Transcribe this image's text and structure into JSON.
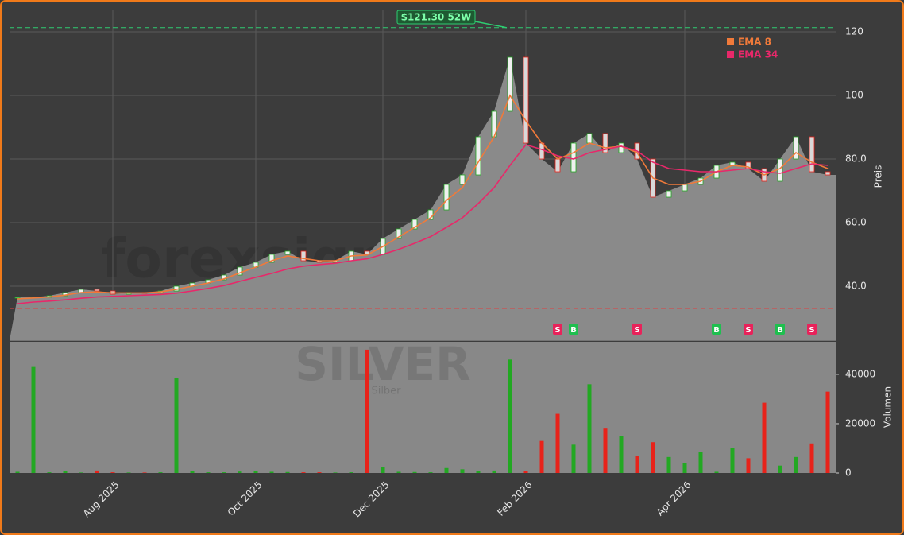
{
  "chart_data": {
    "type": "candlestick",
    "watermark": "forexsignale.trade",
    "symbol": "SILVER",
    "symbol_name": "Silber",
    "y_label": "Preis",
    "y2_label": "Volumen",
    "categories": [
      null,
      null,
      null,
      null,
      null,
      null,
      "Aug 2025",
      null,
      null,
      null,
      null,
      null,
      null,
      null,
      null,
      "Oct 2025",
      null,
      null,
      null,
      null,
      null,
      null,
      null,
      "Dec 2025",
      null,
      null,
      null,
      null,
      null,
      null,
      null,
      null,
      "Feb 2026",
      null,
      null,
      null,
      null,
      null,
      null,
      null,
      null,
      null,
      "Apr 2026",
      null,
      null,
      null,
      null,
      null,
      null,
      null,
      null,
      null
    ],
    "close": [
      36.5,
      36.5,
      37,
      38,
      39,
      38.5,
      37.5,
      38,
      37.8,
      38.5,
      40,
      41,
      42,
      43.5,
      46,
      47.5,
      50,
      51,
      48,
      47.5,
      48,
      51,
      50,
      55,
      58,
      61,
      64,
      72,
      75,
      87,
      95,
      112,
      85,
      80,
      76,
      85,
      88,
      82,
      85,
      80,
      68,
      70,
      72,
      74,
      78,
      79,
      77,
      73,
      80,
      87,
      76,
      75
    ],
    "series": [
      {
        "name": "EMA 8",
        "color": "#f07a3a",
        "values": [
          36,
          36.3,
          36.6,
          37.2,
          38,
          38.2,
          37.9,
          37.9,
          37.9,
          38.2,
          39,
          40,
          41,
          42.3,
          44.2,
          46,
          48,
          49.5,
          48.7,
          48,
          48,
          49.5,
          49.8,
          52.5,
          55.5,
          58.5,
          61.5,
          67,
          71,
          79,
          87,
          100,
          92,
          85,
          80,
          82,
          85,
          83.5,
          84,
          82,
          74,
          72,
          72,
          73,
          76,
          78,
          77.5,
          75,
          77,
          82,
          79,
          77
        ]
      },
      {
        "name": "EMA 34",
        "color": "#e8286a",
        "values": [
          34.5,
          35,
          35.3,
          35.7,
          36.2,
          36.6,
          36.8,
          37,
          37.2,
          37.4,
          37.8,
          38.5,
          39.3,
          40.2,
          41.5,
          42.8,
          44,
          45.4,
          46.3,
          46.8,
          47.2,
          48,
          48.6,
          50,
          51.6,
          53.5,
          55.6,
          58.5,
          61.5,
          66,
          71,
          78,
          84.5,
          83,
          81,
          80,
          82,
          83,
          84,
          82.5,
          79,
          77,
          76.5,
          76,
          76,
          76.5,
          77,
          76,
          75.5,
          77,
          78.5,
          78
        ]
      }
    ],
    "volume": [
      500,
      43000,
      300,
      800,
      200,
      1000,
      300,
      200,
      200,
      300,
      38500,
      800,
      300,
      300,
      600,
      800,
      500,
      400,
      300,
      300,
      200,
      300,
      50000,
      2500,
      500,
      400,
      300,
      2000,
      1500,
      800,
      1000,
      46000,
      800,
      13000,
      24000,
      11500,
      36000,
      18000,
      15000,
      7000,
      12500,
      6500,
      4000,
      8500,
      500,
      10000,
      6000,
      28500,
      3000,
      6500,
      12000,
      33000
    ],
    "ylim": [
      23,
      127
    ],
    "yticks": [
      {
        "value": 40,
        "label": "40.0"
      },
      {
        "value": 60,
        "label": "60.0"
      },
      {
        "value": 80,
        "label": "80.0"
      },
      100,
      120
    ],
    "y2lim": [
      0,
      53200
    ],
    "y2ticks": [
      0,
      20000,
      40000
    ],
    "high_line": {
      "value": 121.3,
      "label": "$121.30 52W"
    },
    "low_line": 33,
    "signals": [
      {
        "index": 34,
        "label": "S"
      },
      {
        "index": 35,
        "label": "B"
      },
      {
        "index": 39,
        "label": "S"
      },
      {
        "index": 44,
        "label": "B"
      },
      {
        "index": 46,
        "label": "S"
      },
      {
        "index": 48,
        "label": "B"
      },
      {
        "index": 50,
        "label": "S"
      }
    ],
    "up_color": "#22a822",
    "down_color": "#e8221a",
    "grid": true
  }
}
